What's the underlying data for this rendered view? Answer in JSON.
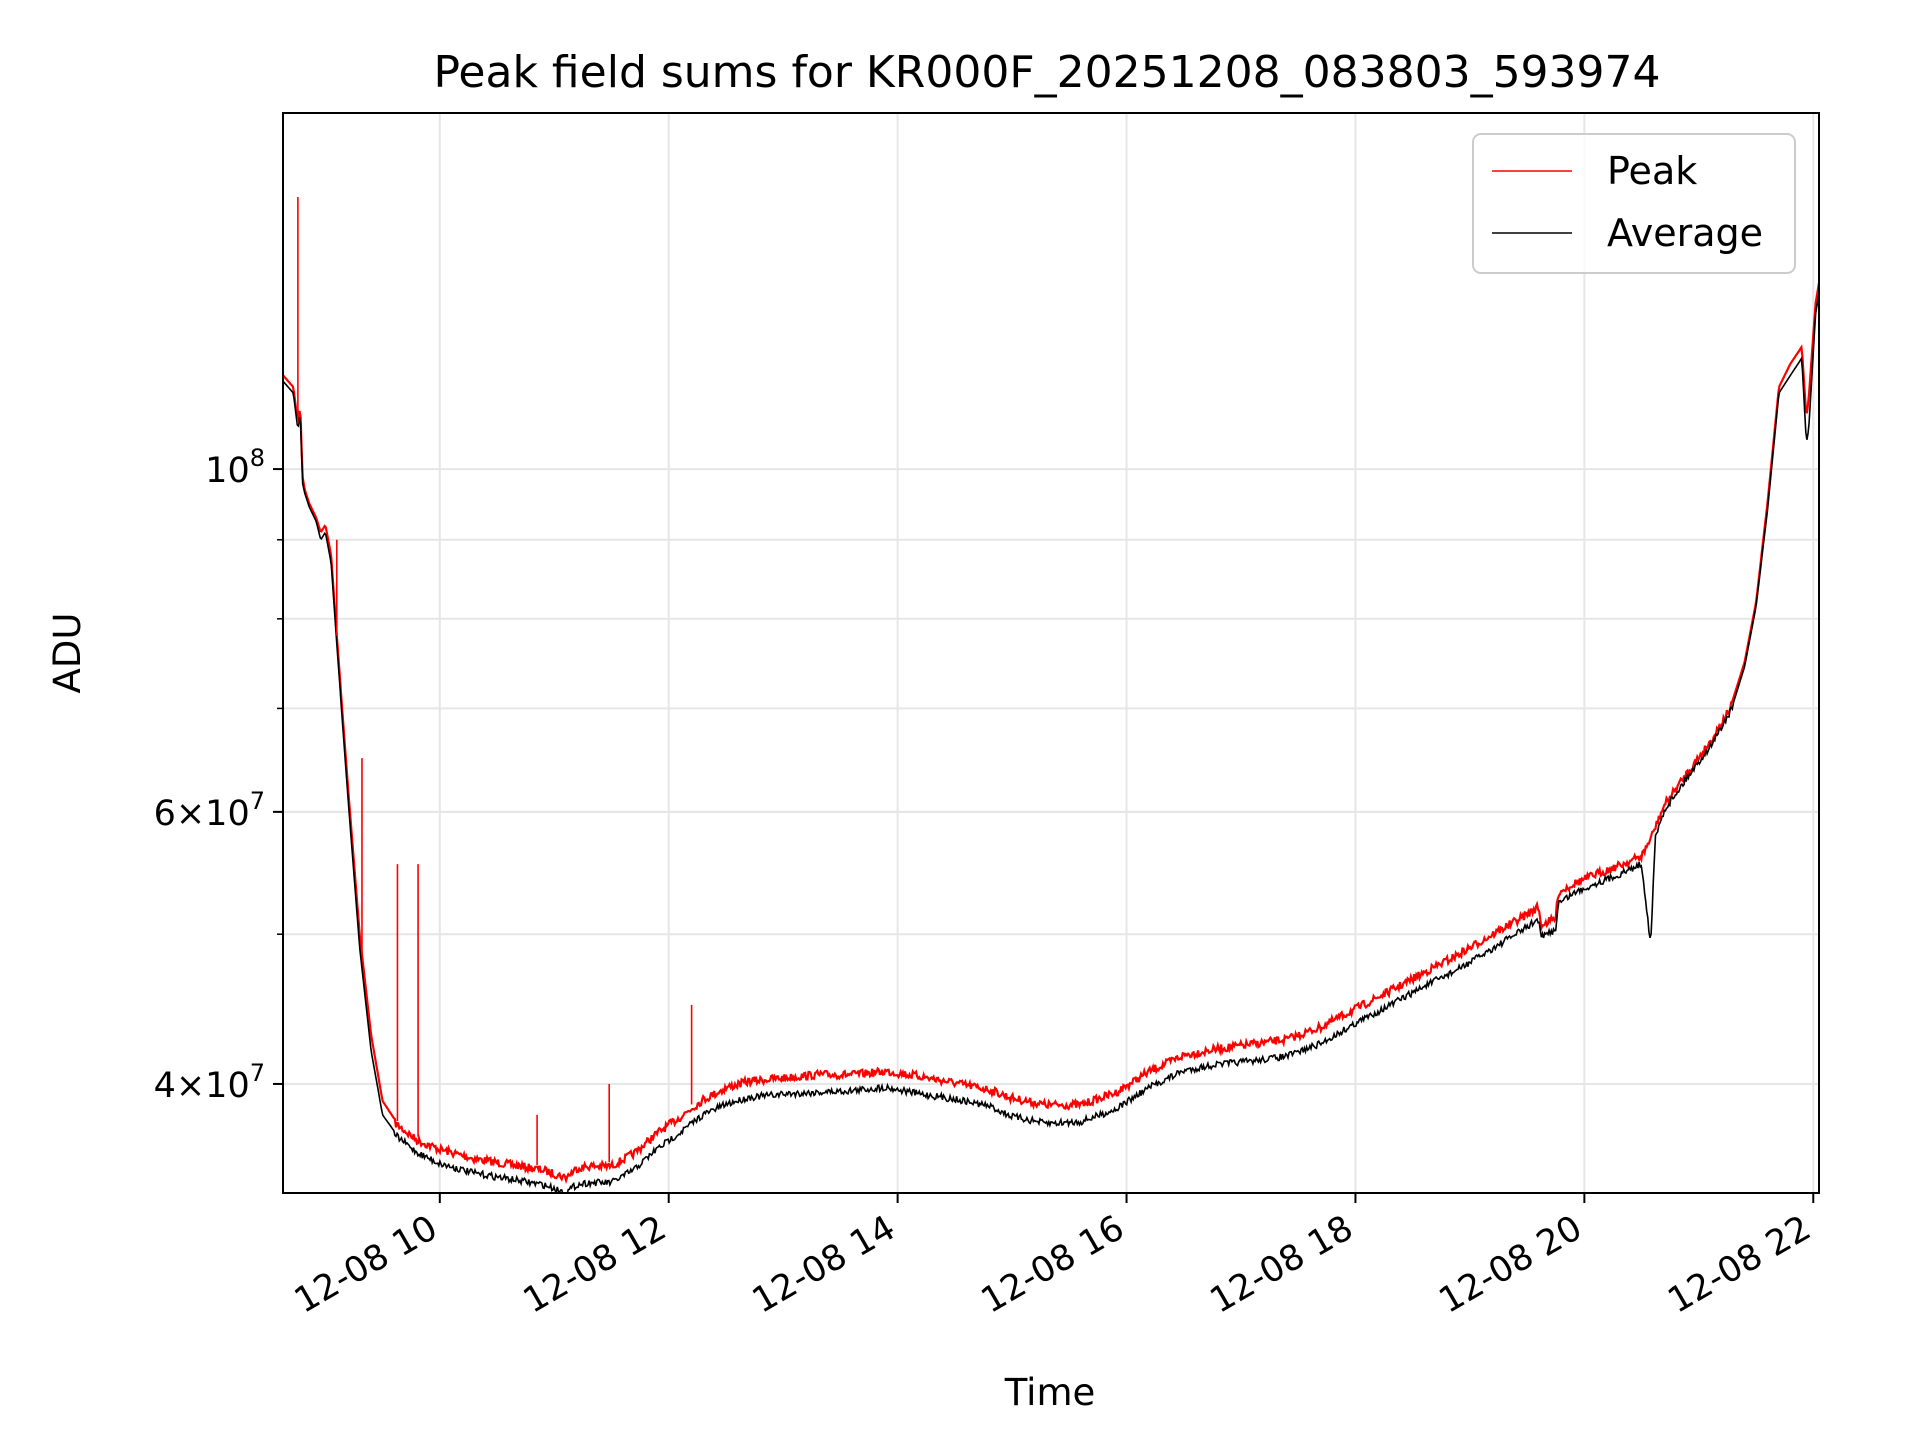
{
  "chart_data": {
    "type": "line",
    "title": "Peak field sums for KR000F_20251208_083803_593974",
    "xlabel": "Time",
    "ylabel": "ADU",
    "x_scale": "time (hours)",
    "y_scale": "log",
    "xlim": [
      8.63,
      22.05
    ],
    "ylim": [
      34000000,
      170000000
    ],
    "grid": true,
    "legend_position": "top-right",
    "x_ticks": [
      {
        "value": 10,
        "label": "12-08 10"
      },
      {
        "value": 12,
        "label": "12-08 12"
      },
      {
        "value": 14,
        "label": "12-08 14"
      },
      {
        "value": 16,
        "label": "12-08 16"
      },
      {
        "value": 18,
        "label": "12-08 18"
      },
      {
        "value": 20,
        "label": "12-08 20"
      },
      {
        "value": 22,
        "label": "12-08 22"
      }
    ],
    "y_major_ticks": [
      {
        "value": 40000000,
        "mantissa": "4",
        "exponent": "7"
      },
      {
        "value": 60000000,
        "mantissa": "6",
        "exponent": "7"
      },
      {
        "value": 100000000,
        "mantissa": "",
        "exponent": "8"
      }
    ],
    "y_minor_ticks": [
      30000000,
      40000000,
      50000000,
      60000000,
      70000000,
      80000000,
      90000000
    ],
    "series": [
      {
        "name": "Peak",
        "color": "#ff0000",
        "x": [
          8.63,
          8.72,
          8.76,
          8.78,
          8.8,
          8.82,
          8.86,
          8.92,
          8.96,
          9.0,
          9.05,
          9.1,
          9.2,
          9.3,
          9.4,
          9.5,
          9.6,
          9.7,
          9.8,
          10.0,
          10.3,
          10.6,
          10.9,
          11.0,
          11.1,
          11.2,
          11.3,
          11.5,
          11.7,
          11.9,
          12.1,
          12.3,
          12.5,
          12.7,
          13.0,
          13.3,
          13.6,
          13.9,
          14.2,
          14.5,
          14.8,
          15.0,
          15.3,
          15.6,
          15.9,
          16.2,
          16.5,
          16.8,
          17.1,
          17.4,
          17.7,
          18.0,
          18.3,
          18.6,
          18.9,
          19.2,
          19.5,
          19.6,
          19.62,
          19.75,
          19.77,
          19.9,
          20.1,
          20.3,
          20.5,
          20.58,
          20.62,
          20.7,
          20.9,
          21.1,
          21.3,
          21.4,
          21.5,
          21.6,
          21.7,
          21.8,
          21.9,
          21.94,
          21.96,
          22.02,
          22.05
        ],
        "y": [
          115000000,
          113000000,
          107000000,
          110000000,
          99000000,
          97000000,
          95000000,
          93000000,
          91000000,
          92000000,
          88000000,
          78000000,
          62000000,
          50000000,
          43000000,
          39000000,
          38000000,
          37500000,
          37000000,
          36500000,
          36000000,
          35700000,
          35400000,
          35200000,
          35000000,
          35500000,
          35600000,
          35600000,
          36300000,
          37400000,
          38300000,
          39300000,
          40000000,
          40400000,
          40600000,
          40800000,
          40800000,
          41000000,
          40700000,
          40300000,
          39900000,
          39400000,
          39000000,
          39000000,
          39700000,
          41000000,
          42000000,
          42400000,
          42700000,
          43000000,
          43800000,
          45000000,
          46200000,
          47500000,
          48800000,
          50300000,
          51800000,
          52400000,
          51000000,
          51500000,
          53500000,
          54200000,
          55000000,
          55700000,
          56500000,
          58000000,
          59000000,
          61000000,
          64000000,
          67000000,
          71000000,
          75000000,
          82000000,
          95000000,
          113000000,
          117000000,
          120000000,
          108000000,
          111000000,
          128000000,
          132000000
        ]
      },
      {
        "name": "Average",
        "color": "#000000",
        "x": [
          8.63,
          8.72,
          8.76,
          8.78,
          8.8,
          8.82,
          8.86,
          8.92,
          8.96,
          9.0,
          9.05,
          9.1,
          9.2,
          9.3,
          9.4,
          9.5,
          9.6,
          9.7,
          9.8,
          10.0,
          10.3,
          10.6,
          10.9,
          11.0,
          11.1,
          11.2,
          11.3,
          11.5,
          11.7,
          11.9,
          12.1,
          12.3,
          12.5,
          12.7,
          13.0,
          13.3,
          13.6,
          13.9,
          14.2,
          14.5,
          14.8,
          15.0,
          15.3,
          15.6,
          15.9,
          16.2,
          16.5,
          16.8,
          17.1,
          17.4,
          17.7,
          18.0,
          18.3,
          18.6,
          18.9,
          19.2,
          19.5,
          19.6,
          19.62,
          19.75,
          19.77,
          19.9,
          20.1,
          20.3,
          20.5,
          20.58,
          20.62,
          20.7,
          20.9,
          21.1,
          21.3,
          21.4,
          21.5,
          21.6,
          21.7,
          21.8,
          21.9,
          21.94,
          21.96,
          22.02,
          22.05
        ],
        "y": [
          114000000,
          112000000,
          106000000,
          109000000,
          98000000,
          96500000,
          94500000,
          92500000,
          90000000,
          91000000,
          87000000,
          77000000,
          61000000,
          49000000,
          42000000,
          38200000,
          37300000,
          36800000,
          36300000,
          35700000,
          35200000,
          34900000,
          34600000,
          34400000,
          34200000,
          34600000,
          34700000,
          34700000,
          35400000,
          36500000,
          37400000,
          38400000,
          39000000,
          39400000,
          39600000,
          39700000,
          39800000,
          40000000,
          39600000,
          39300000,
          38900000,
          38300000,
          37900000,
          38000000,
          38700000,
          40000000,
          41000000,
          41400000,
          41600000,
          41900000,
          42700000,
          44000000,
          45200000,
          46500000,
          47700000,
          49200000,
          50800000,
          51400000,
          50000000,
          50600000,
          52600000,
          53400000,
          54200000,
          54900000,
          55800000,
          49500000,
          58000000,
          60500000,
          63500000,
          66500000,
          70500000,
          74500000,
          81500000,
          94000000,
          112000000,
          115000000,
          118000000,
          104000000,
          106000000,
          126000000,
          130000000
        ]
      }
    ],
    "spikes": [
      {
        "series": "Peak",
        "x": 9.32,
        "y": 65000000
      },
      {
        "series": "Peak",
        "x": 9.63,
        "y": 55500000
      },
      {
        "series": "Peak",
        "x": 9.81,
        "y": 55500000
      },
      {
        "series": "Peak",
        "x": 10.85,
        "y": 38200000
      },
      {
        "series": "Peak",
        "x": 11.48,
        "y": 40000000
      },
      {
        "series": "Peak",
        "x": 12.2,
        "y": 45000000
      },
      {
        "series": "Peak",
        "x": 9.1,
        "y": 90000000
      },
      {
        "series": "Peak",
        "x": 8.76,
        "y": 150000000
      }
    ]
  },
  "legend": {
    "items": [
      {
        "label": "Peak",
        "color": "#ff0000"
      },
      {
        "label": "Average",
        "color": "#000000"
      }
    ]
  }
}
